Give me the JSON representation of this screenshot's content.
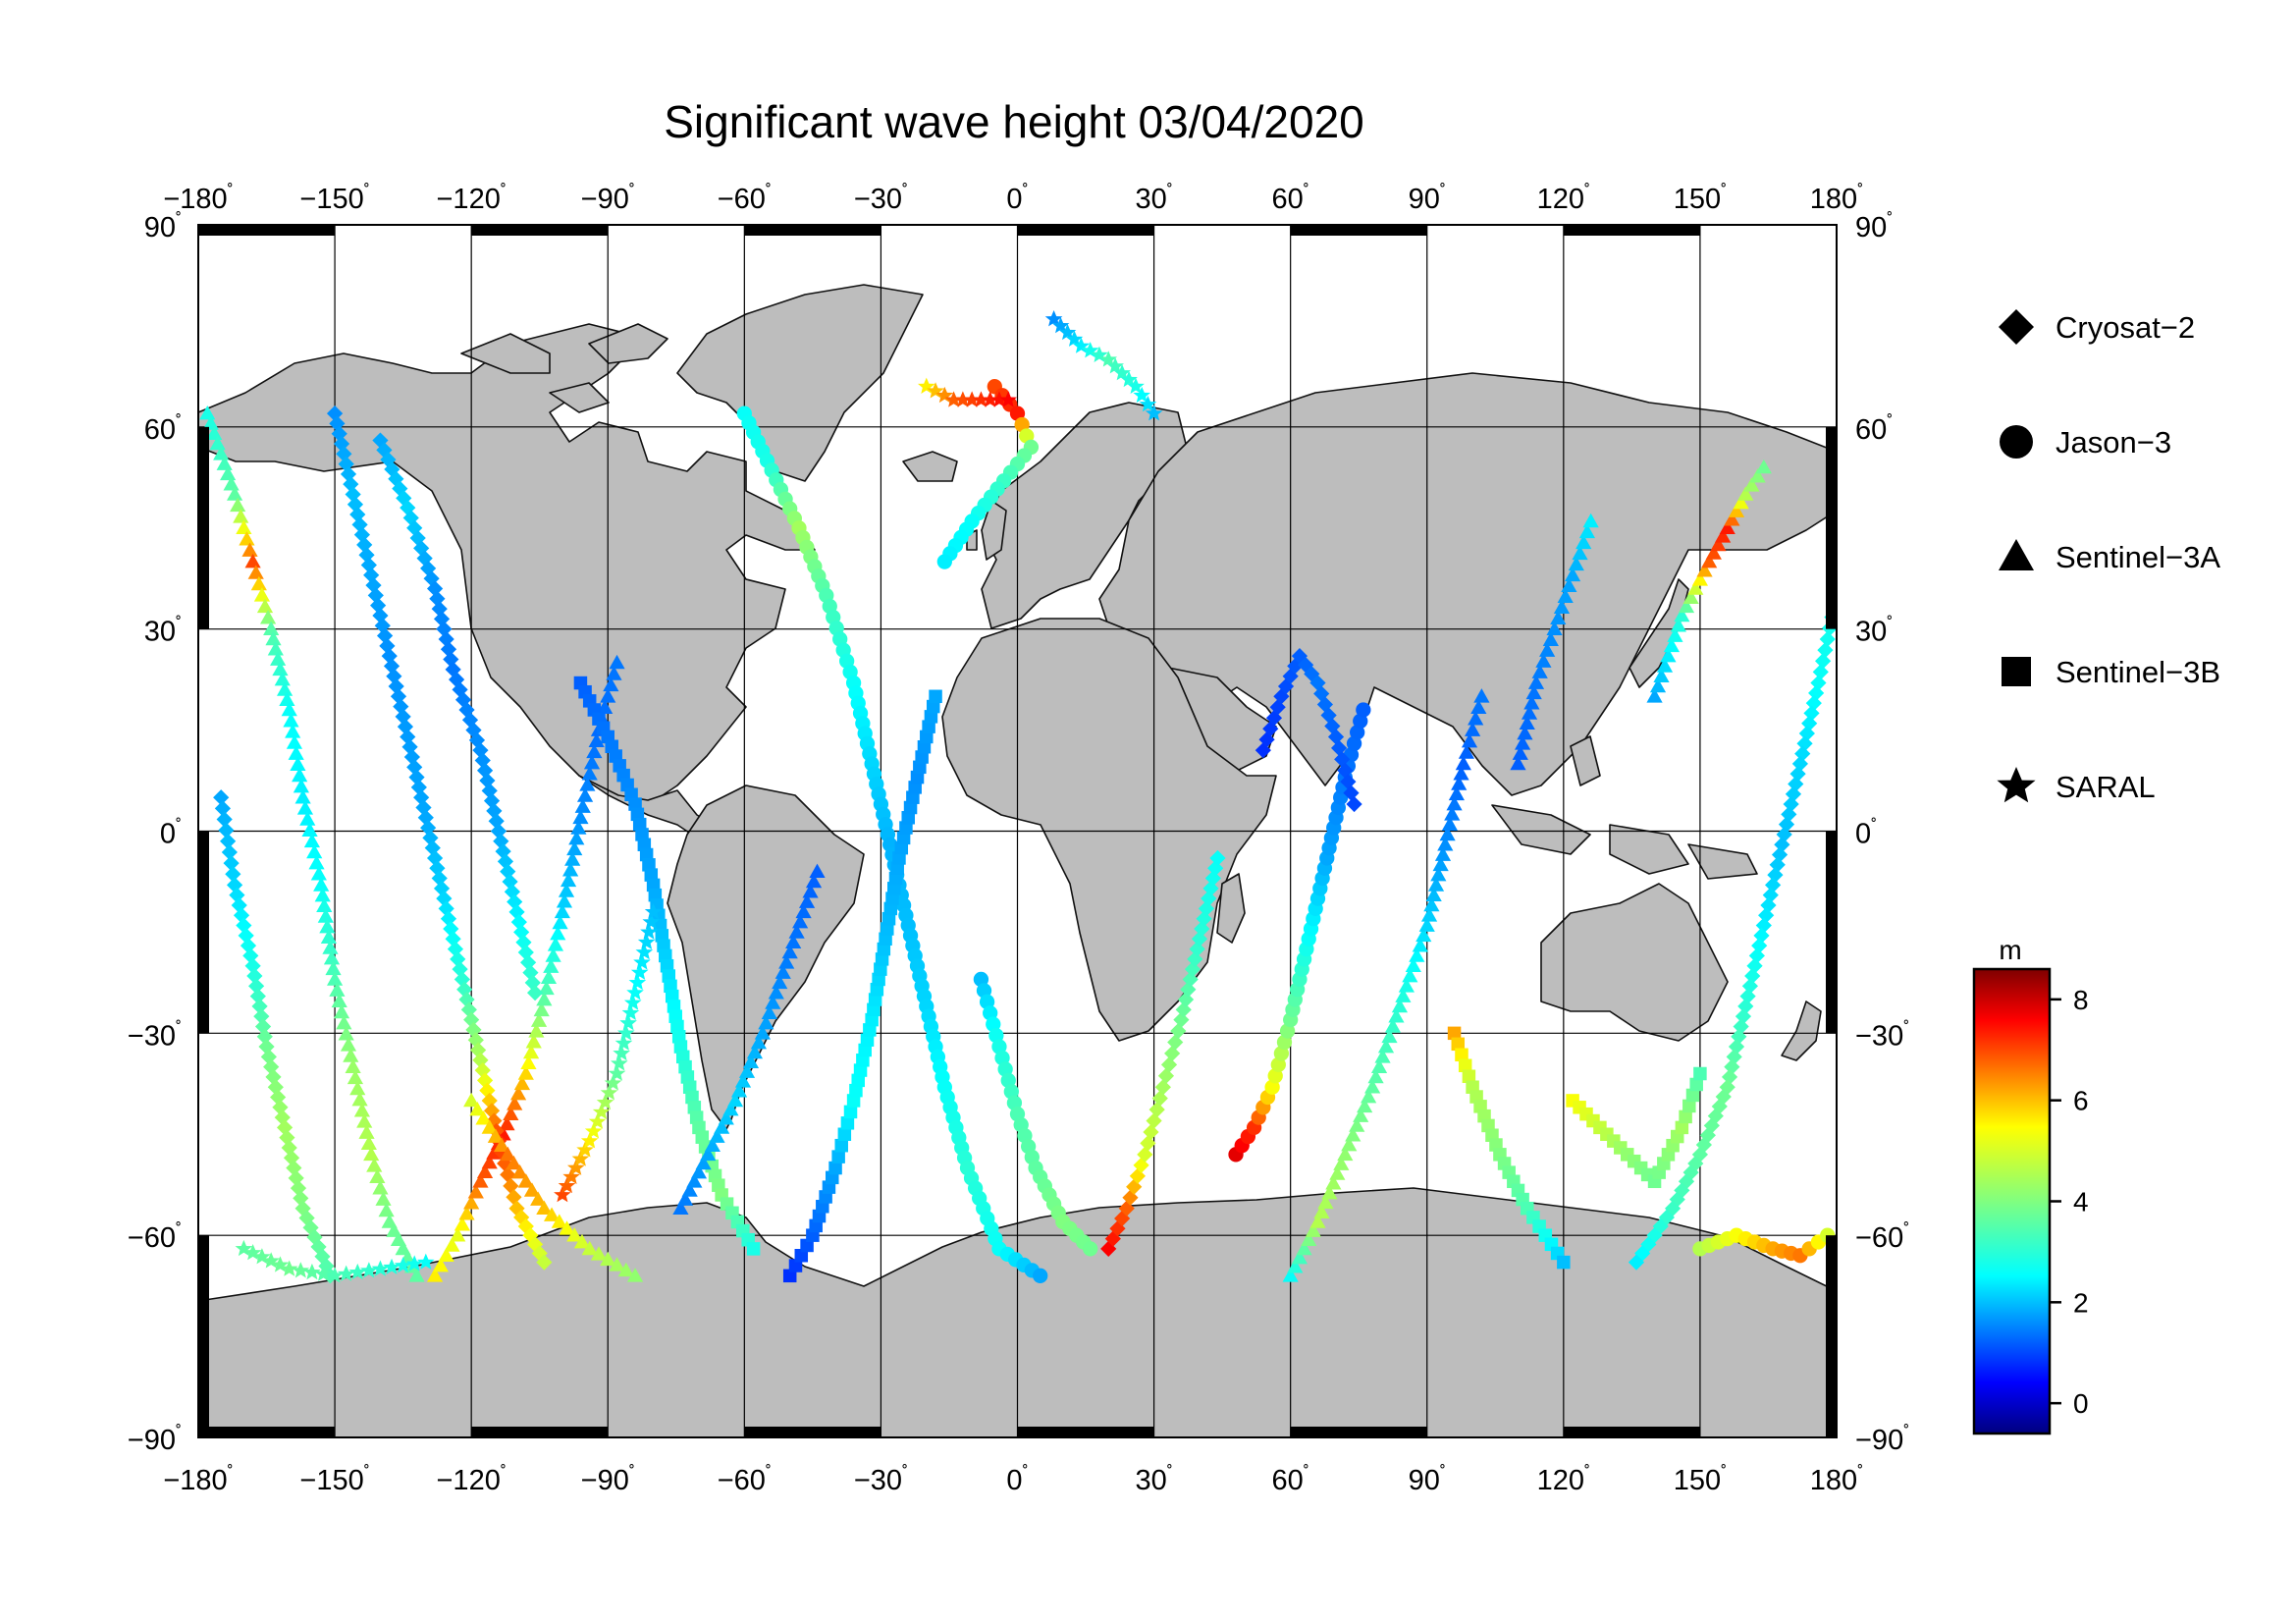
{
  "title": "Significant wave height 03/04/2020",
  "chart_data": {
    "type": "scatter",
    "projection": "equirectangular",
    "x_axis": {
      "range": [
        -180,
        180
      ],
      "ticks": [
        -180,
        -150,
        -120,
        -90,
        -60,
        -30,
        0,
        30,
        60,
        90,
        120,
        150,
        180
      ]
    },
    "y_axis": {
      "range": [
        -90,
        90
      ],
      "ticks": [
        90,
        60,
        30,
        0,
        -30,
        -60,
        -90
      ]
    },
    "grid": true,
    "legend": {
      "placement": "right",
      "entries": [
        {
          "label": "Cryosat−2",
          "marker": "diamond"
        },
        {
          "label": "Jason−3",
          "marker": "circle"
        },
        {
          "label": "Sentinel−3A",
          "marker": "triangle"
        },
        {
          "label": "Sentinel−3B",
          "marker": "square"
        },
        {
          "label": "SARAL",
          "marker": "star"
        }
      ]
    },
    "colorbar": {
      "label": "m",
      "range": [
        -0.6,
        8.6
      ],
      "ticks": [
        0,
        2,
        4,
        6,
        8
      ],
      "colormap": "jet"
    },
    "tracks": [
      {
        "marker": "triangle",
        "points": [
          [
            -178,
            62,
            2.8
          ],
          [
            -172,
            50,
            3.6
          ],
          [
            -168,
            40,
            7.0
          ],
          [
            -164,
            30,
            3.5
          ],
          [
            -160,
            18,
            2.6
          ],
          [
            -157,
            5,
            2.4
          ],
          [
            -153,
            -8,
            2.6
          ],
          [
            -150,
            -22,
            3.4
          ],
          [
            -146,
            -35,
            4.3
          ],
          [
            -142,
            -48,
            4.6
          ],
          [
            -138,
            -58,
            3.8
          ],
          [
            -132,
            -66,
            3.6
          ]
        ]
      },
      {
        "marker": "triangle",
        "points": [
          [
            -128,
            -66,
            5.6
          ],
          [
            -123,
            -60,
            5.2
          ],
          [
            -118,
            -52,
            6.8
          ],
          [
            -113,
            -45,
            7.4
          ],
          [
            -108,
            -36,
            5.8
          ],
          [
            -104,
            -25,
            3.6
          ],
          [
            -100,
            -12,
            2.2
          ],
          [
            -96,
            2,
            1.6
          ],
          [
            -92,
            15,
            1.3
          ],
          [
            -88,
            25,
            1.4
          ]
        ]
      },
      {
        "marker": "diamond",
        "points": [
          [
            -150,
            62,
            1.6
          ],
          [
            -146,
            50,
            2.0
          ],
          [
            -142,
            38,
            1.8
          ],
          [
            -138,
            26,
            1.6
          ],
          [
            -134,
            14,
            1.7
          ],
          [
            -130,
            2,
            1.8
          ],
          [
            -126,
            -10,
            2.2
          ],
          [
            -122,
            -22,
            3.0
          ],
          [
            -118,
            -34,
            4.6
          ],
          [
            -114,
            -46,
            7.2
          ],
          [
            -110,
            -56,
            6.0
          ],
          [
            -104,
            -64,
            4.8
          ]
        ]
      },
      {
        "marker": "diamond",
        "points": [
          [
            -175,
            5,
            1.8
          ],
          [
            -172,
            -8,
            2.2
          ],
          [
            -168,
            -20,
            2.8
          ],
          [
            -165,
            -32,
            3.8
          ],
          [
            -161,
            -44,
            4.4
          ],
          [
            -157,
            -56,
            4.0
          ],
          [
            -151,
            -66,
            3.4
          ]
        ]
      },
      {
        "marker": "circle",
        "points": [
          [
            -60,
            62,
            2.6
          ],
          [
            -55,
            55,
            2.8
          ],
          [
            -48,
            45,
            4.4
          ],
          [
            -42,
            35,
            3.4
          ],
          [
            -36,
            22,
            2.6
          ],
          [
            -32,
            10,
            2.2
          ],
          [
            -28,
            -2,
            1.9
          ],
          [
            -24,
            -14,
            2.0
          ],
          [
            -20,
            -26,
            2.2
          ],
          [
            -16,
            -38,
            2.6
          ],
          [
            -11,
            -50,
            3.0
          ],
          [
            -4,
            -62,
            2.6
          ],
          [
            5,
            -66,
            1.8
          ]
        ]
      },
      {
        "marker": "circle",
        "points": [
          [
            -5,
            66,
            7.0
          ],
          [
            0,
            62,
            7.4
          ],
          [
            3,
            57,
            3.8
          ],
          [
            -3,
            52,
            3.2
          ],
          [
            -10,
            46,
            2.6
          ],
          [
            -16,
            40,
            2.4
          ]
        ]
      },
      {
        "marker": "square",
        "points": [
          [
            -50,
            -66,
            0.8
          ],
          [
            -45,
            -60,
            1.2
          ],
          [
            -40,
            -50,
            1.8
          ],
          [
            -36,
            -40,
            2.6
          ],
          [
            -32,
            -28,
            2.4
          ],
          [
            -29,
            -16,
            2.0
          ],
          [
            -26,
            -4,
            1.8
          ],
          [
            -22,
            8,
            1.6
          ],
          [
            -18,
            20,
            1.8
          ]
        ]
      },
      {
        "marker": "star",
        "points": [
          [
            -20,
            66,
            5.6
          ],
          [
            -14,
            64,
            6.8
          ],
          [
            -8,
            64,
            7.2
          ],
          [
            -2,
            64,
            7.6
          ]
        ]
      },
      {
        "marker": "diamond",
        "points": [
          [
            20,
            -62,
            7.6
          ],
          [
            24,
            -56,
            6.8
          ],
          [
            28,
            -48,
            5.0
          ],
          [
            32,
            -38,
            4.4
          ],
          [
            36,
            -28,
            3.8
          ],
          [
            40,
            -16,
            3.0
          ],
          [
            44,
            -4,
            2.6
          ]
        ]
      },
      {
        "marker": "circle",
        "points": [
          [
            48,
            -48,
            7.8
          ],
          [
            52,
            -44,
            7.2
          ],
          [
            56,
            -38,
            5.4
          ],
          [
            60,
            -28,
            3.8
          ],
          [
            64,
            -16,
            2.6
          ],
          [
            68,
            -4,
            1.8
          ],
          [
            72,
            8,
            1.4
          ],
          [
            76,
            18,
            1.2
          ]
        ]
      },
      {
        "marker": "triangle",
        "points": [
          [
            60,
            -66,
            2.6
          ],
          [
            66,
            -58,
            4.6
          ],
          [
            72,
            -48,
            4.2
          ],
          [
            78,
            -38,
            3.6
          ],
          [
            84,
            -26,
            3.0
          ],
          [
            90,
            -14,
            2.2
          ],
          [
            94,
            -2,
            1.6
          ],
          [
            98,
            10,
            1.2
          ],
          [
            102,
            20,
            1.4
          ]
        ]
      },
      {
        "marker": "square",
        "points": [
          [
            96,
            -30,
            6.2
          ],
          [
            100,
            -38,
            4.6
          ],
          [
            106,
            -48,
            4.0
          ],
          [
            112,
            -56,
            3.4
          ],
          [
            120,
            -64,
            2.0
          ]
        ]
      },
      {
        "marker": "triangle",
        "points": [
          [
            110,
            10,
            1.2
          ],
          [
            114,
            22,
            1.4
          ],
          [
            118,
            30,
            1.6
          ],
          [
            122,
            38,
            1.8
          ],
          [
            126,
            46,
            2.4
          ]
        ]
      },
      {
        "marker": "triangle",
        "points": [
          [
            140,
            20,
            1.8
          ],
          [
            146,
            32,
            3.0
          ],
          [
            152,
            40,
            6.8
          ],
          [
            156,
            45,
            7.4
          ],
          [
            160,
            50,
            4.6
          ],
          [
            164,
            54,
            3.8
          ]
        ]
      },
      {
        "marker": "diamond",
        "points": [
          [
            180,
            35,
            2.8
          ],
          [
            176,
            22,
            2.6
          ],
          [
            172,
            10,
            2.2
          ],
          [
            168,
            -2,
            2.0
          ],
          [
            164,
            -14,
            2.4
          ],
          [
            160,
            -26,
            3.0
          ],
          [
            156,
            -38,
            3.8
          ],
          [
            150,
            -48,
            3.6
          ],
          [
            144,
            -56,
            3.2
          ],
          [
            136,
            -64,
            2.4
          ]
        ]
      },
      {
        "marker": "circle",
        "points": [
          [
            150,
            -62,
            4.6
          ],
          [
            158,
            -60,
            5.4
          ],
          [
            166,
            -62,
            6.2
          ],
          [
            172,
            -63,
            6.6
          ],
          [
            178,
            -60,
            5.0
          ]
        ]
      },
      {
        "marker": "star",
        "points": [
          [
            8,
            76,
            1.6
          ],
          [
            14,
            72,
            2.4
          ],
          [
            20,
            70,
            3.4
          ],
          [
            26,
            66,
            2.8
          ],
          [
            30,
            62,
            2.0
          ]
        ]
      },
      {
        "marker": "square",
        "points": [
          [
            -96,
            22,
            1.2
          ],
          [
            -90,
            14,
            1.4
          ],
          [
            -84,
            4,
            1.6
          ],
          [
            -80,
            -8,
            1.8
          ],
          [
            -77,
            -20,
            2.2
          ],
          [
            -74,
            -32,
            2.8
          ],
          [
            -70,
            -44,
            3.6
          ],
          [
            -65,
            -54,
            4.0
          ],
          [
            -58,
            -62,
            2.8
          ]
        ]
      },
      {
        "marker": "triangle",
        "points": [
          [
            -120,
            -40,
            5.0
          ],
          [
            -112,
            -48,
            6.6
          ],
          [
            -104,
            -56,
            6.0
          ],
          [
            -94,
            -62,
            4.8
          ],
          [
            -84,
            -66,
            4.2
          ]
        ]
      },
      {
        "marker": "star",
        "points": [
          [
            -170,
            -62,
            3.6
          ],
          [
            -160,
            -65,
            3.8
          ],
          [
            -150,
            -66,
            3.4
          ],
          [
            -140,
            -65,
            3.0
          ],
          [
            -130,
            -64,
            2.6
          ]
        ]
      },
      {
        "marker": "triangle",
        "points": [
          [
            -74,
            -56,
            1.4
          ],
          [
            -68,
            -48,
            1.8
          ],
          [
            -62,
            -40,
            2.2
          ],
          [
            -56,
            -30,
            1.8
          ],
          [
            -50,
            -18,
            1.4
          ],
          [
            -44,
            -6,
            1.2
          ]
        ]
      },
      {
        "marker": "diamond",
        "points": [
          [
            -140,
            58,
            1.8
          ],
          [
            -134,
            48,
            2.2
          ],
          [
            -128,
            36,
            1.6
          ],
          [
            -124,
            24,
            1.4
          ],
          [
            -118,
            12,
            1.6
          ],
          [
            -114,
            0,
            1.8
          ],
          [
            -110,
            -12,
            2.4
          ],
          [
            -106,
            -24,
            3.2
          ]
        ]
      },
      {
        "marker": "star",
        "points": [
          [
            -100,
            -54,
            7.0
          ],
          [
            -94,
            -46,
            5.6
          ],
          [
            -88,
            -36,
            3.6
          ],
          [
            -84,
            -24,
            2.6
          ],
          [
            -80,
            -12,
            2.0
          ]
        ]
      },
      {
        "marker": "diamond",
        "points": [
          [
            54,
            12,
            0.8
          ],
          [
            58,
            20,
            1.0
          ],
          [
            62,
            26,
            1.2
          ],
          [
            66,
            22,
            1.4
          ],
          [
            70,
            14,
            1.2
          ],
          [
            74,
            4,
            1.0
          ]
        ]
      },
      {
        "marker": "square",
        "points": [
          [
            122,
            -40,
            5.4
          ],
          [
            128,
            -44,
            4.8
          ],
          [
            134,
            -48,
            4.2
          ],
          [
            140,
            -52,
            3.8
          ],
          [
            146,
            -44,
            4.4
          ],
          [
            150,
            -36,
            3.4
          ]
        ]
      },
      {
        "marker": "circle",
        "points": [
          [
            -8,
            -22,
            2.0
          ],
          [
            -4,
            -32,
            2.8
          ],
          [
            0,
            -42,
            3.4
          ],
          [
            4,
            -50,
            3.6
          ],
          [
            10,
            -58,
            4.0
          ],
          [
            16,
            -62,
            3.8
          ]
        ]
      }
    ]
  }
}
